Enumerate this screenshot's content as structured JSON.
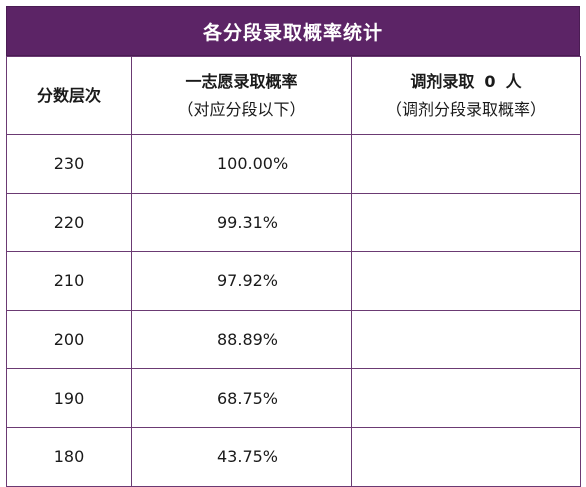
{
  "title": "各分段录取概率统计",
  "headers": {
    "score_tier": "分数层次",
    "first_choice_line1": "一志愿录取概率",
    "first_choice_line2": "（对应分段以下）",
    "adjust_prefix": "调剂录取",
    "adjust_count": "0",
    "adjust_suffix": "人",
    "adjust_line2": "（调剂分段录取概率）"
  },
  "rows": [
    {
      "score": "230",
      "rate": "100.00%",
      "adjust_rate": ""
    },
    {
      "score": "220",
      "rate": "99.31%",
      "adjust_rate": ""
    },
    {
      "score": "210",
      "rate": "97.92%",
      "adjust_rate": ""
    },
    {
      "score": "200",
      "rate": "88.89%",
      "adjust_rate": ""
    },
    {
      "score": "190",
      "rate": "68.75%",
      "adjust_rate": ""
    },
    {
      "score": "180",
      "rate": "43.75%",
      "adjust_rate": ""
    }
  ],
  "colors": {
    "title_bg": "#5c2466",
    "title_text": "#ffffff",
    "border": "#6b3a73"
  }
}
